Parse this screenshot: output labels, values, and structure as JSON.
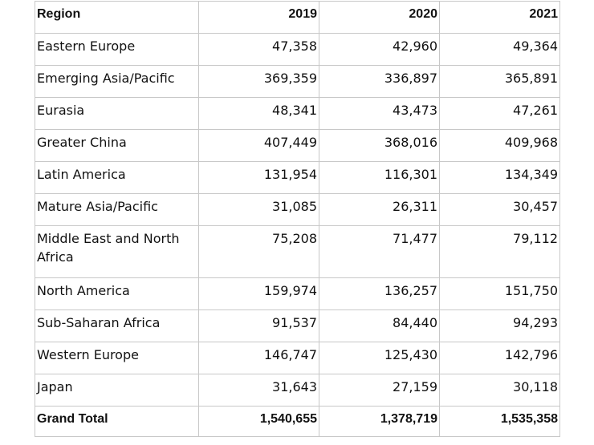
{
  "table": {
    "columns": [
      "Region",
      "2019",
      "2020",
      "2021"
    ],
    "rows": [
      {
        "region": "Eastern Europe",
        "y2019": "47,358",
        "y2020": "42,960",
        "y2021": "49,364"
      },
      {
        "region": "Emerging Asia/Pacific",
        "y2019": "369,359",
        "y2020": "336,897",
        "y2021": "365,891"
      },
      {
        "region": "Eurasia",
        "y2019": "48,341",
        "y2020": "43,473",
        "y2021": "47,261"
      },
      {
        "region": "Greater China",
        "y2019": "407,449",
        "y2020": "368,016",
        "y2021": "409,968"
      },
      {
        "region": "Latin America",
        "y2019": "131,954",
        "y2020": "116,301",
        "y2021": "134,349"
      },
      {
        "region": "Mature Asia/Pacific",
        "y2019": "31,085",
        "y2020": "26,311",
        "y2021": "30,457"
      },
      {
        "region": "Middle East and North Africa",
        "y2019": "75,208",
        "y2020": "71,477",
        "y2021": "79,112"
      },
      {
        "region": "North America",
        "y2019": "159,974",
        "y2020": "136,257",
        "y2021": "151,750"
      },
      {
        "region": "Sub-Saharan Africa",
        "y2019": "91,537",
        "y2020": "84,440",
        "y2021": "94,293"
      },
      {
        "region": "Western Europe",
        "y2019": "146,747",
        "y2020": "125,430",
        "y2021": "142,796"
      },
      {
        "region": "Japan",
        "y2019": "31,643",
        "y2020": "27,159",
        "y2021": "30,118"
      }
    ],
    "total": {
      "region": "Grand Total",
      "y2019": "1,540,655",
      "y2020": "1,378,719",
      "y2021": "1,535,358"
    }
  }
}
